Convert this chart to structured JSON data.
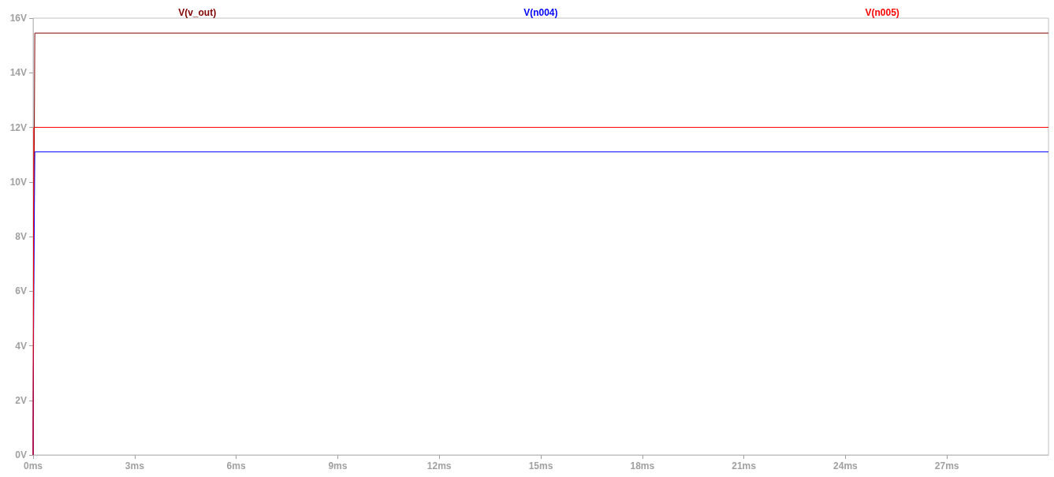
{
  "chart_data": {
    "type": "line",
    "xlim": [
      0,
      30
    ],
    "xticks": [
      {
        "value": 0,
        "label": "0ms"
      },
      {
        "value": 3,
        "label": "3ms"
      },
      {
        "value": 6,
        "label": "6ms"
      },
      {
        "value": 9,
        "label": "9ms"
      },
      {
        "value": 12,
        "label": "12ms"
      },
      {
        "value": 15,
        "label": "15ms"
      },
      {
        "value": 18,
        "label": "18ms"
      },
      {
        "value": 21,
        "label": "21ms"
      },
      {
        "value": 24,
        "label": "24ms"
      },
      {
        "value": 27,
        "label": "27ms"
      }
    ],
    "ylim": [
      0,
      16
    ],
    "yticks": [
      {
        "value": 0,
        "label": "0V"
      },
      {
        "value": 2,
        "label": "2V"
      },
      {
        "value": 4,
        "label": "4V"
      },
      {
        "value": 6,
        "label": "6V"
      },
      {
        "value": 8,
        "label": "8V"
      },
      {
        "value": 10,
        "label": "10V"
      },
      {
        "value": 12,
        "label": "12V"
      },
      {
        "value": 14,
        "label": "14V"
      },
      {
        "value": 16,
        "label": "16V"
      }
    ],
    "series": [
      {
        "name": "V(v_out)",
        "color": "#800000",
        "x": [
          0,
          0.02,
          0.05,
          30
        ],
        "values": [
          0,
          7.7,
          15.45,
          15.45
        ]
      },
      {
        "name": "V(n004)",
        "color": "#0000ff",
        "x": [
          0,
          0.02,
          0.05,
          30
        ],
        "values": [
          0,
          6,
          11.1,
          11.1
        ]
      },
      {
        "name": "V(n005)",
        "color": "#ff0000",
        "x": [
          0,
          0.02,
          30
        ],
        "values": [
          0,
          12,
          12
        ]
      }
    ],
    "grid": false,
    "legend": "top",
    "marker": "none",
    "line_style": "solid"
  }
}
